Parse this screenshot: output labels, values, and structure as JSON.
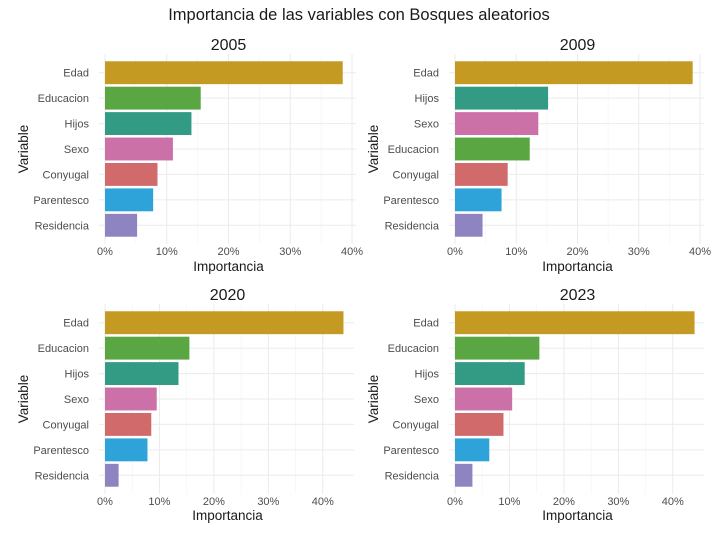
{
  "figure_title": "Importancia de las variables con Bosques aleatorios",
  "colors": {
    "Edad": "#c49a22",
    "Educacion": "#5aa642",
    "Hijos": "#339a84",
    "Sexo": "#cc70a8",
    "Conyugal": "#d16a6a",
    "Parentesco": "#2ea3d9",
    "Residencia": "#8f84c2"
  },
  "chart_data": [
    {
      "type": "bar",
      "orientation": "horizontal",
      "title": "2005",
      "xlabel": "Importancia",
      "ylabel": "Variable",
      "categories": [
        "Edad",
        "Educacion",
        "Hijos",
        "Sexo",
        "Conyugal",
        "Parentesco",
        "Residencia"
      ],
      "values": [
        38.5,
        15.5,
        14.0,
        11.0,
        8.5,
        7.8,
        5.2
      ],
      "xlim": [
        0,
        40
      ],
      "xticks": [
        0,
        10,
        20,
        30,
        40
      ],
      "xtick_labels": [
        "0%",
        "10%",
        "20%",
        "30%",
        "40%"
      ],
      "grid": true
    },
    {
      "type": "bar",
      "orientation": "horizontal",
      "title": "2009",
      "xlabel": "Importancia",
      "ylabel": "Variable",
      "categories": [
        "Edad",
        "Hijos",
        "Sexo",
        "Educacion",
        "Conyugal",
        "Parentesco",
        "Residencia"
      ],
      "values": [
        38.8,
        15.2,
        13.6,
        12.2,
        8.6,
        7.6,
        4.5
      ],
      "xlim": [
        0,
        40
      ],
      "xticks": [
        0,
        10,
        20,
        30,
        40
      ],
      "xtick_labels": [
        "0%",
        "10%",
        "20%",
        "30%",
        "40%"
      ],
      "grid": true
    },
    {
      "type": "bar",
      "orientation": "horizontal",
      "title": "2020",
      "xlabel": "Importancia",
      "ylabel": "Variable",
      "categories": [
        "Edad",
        "Educacion",
        "Hijos",
        "Sexo",
        "Conyugal",
        "Parentesco",
        "Residencia"
      ],
      "values": [
        43.8,
        15.5,
        13.5,
        9.5,
        8.5,
        7.8,
        2.5
      ],
      "xlim": [
        0,
        45
      ],
      "xticks": [
        0,
        10,
        20,
        30,
        40
      ],
      "xtick_labels": [
        "0%",
        "10%",
        "20%",
        "30%",
        "40%"
      ],
      "grid": true
    },
    {
      "type": "bar",
      "orientation": "horizontal",
      "title": "2023",
      "xlabel": "Importancia",
      "ylabel": "Variable",
      "categories": [
        "Edad",
        "Educacion",
        "Hijos",
        "Sexo",
        "Conyugal",
        "Parentesco",
        "Residencia"
      ],
      "values": [
        44.0,
        15.5,
        12.8,
        10.5,
        8.9,
        6.3,
        3.2
      ],
      "xlim": [
        0,
        45
      ],
      "xticks": [
        0,
        10,
        20,
        30,
        40
      ],
      "xtick_labels": [
        "0%",
        "10%",
        "20%",
        "30%",
        "40%"
      ],
      "grid": true
    }
  ]
}
